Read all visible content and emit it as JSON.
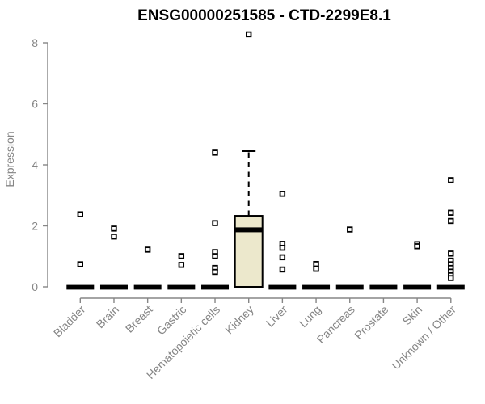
{
  "chart_data": {
    "type": "boxplot",
    "title": "ENSG00000251585 - CTD-2299E8.1",
    "ylabel": "Expression",
    "xlabel": "",
    "ylim": [
      0,
      8
    ],
    "yticks": [
      0,
      2,
      4,
      6,
      8
    ],
    "grid": false,
    "legend": null,
    "categories": [
      "Bladder",
      "Brain",
      "Breast",
      "Gastric",
      "Hematopoietic cells",
      "Kidney",
      "Liver",
      "Lung",
      "Pancreas",
      "Prostate",
      "Skin",
      "Unknown / Other"
    ],
    "boxes": [
      {
        "category": "Bladder",
        "q1": 0,
        "median": 0,
        "q3": 0,
        "whisker_low": 0,
        "whisker_high": 0,
        "outliers": [
          2.38,
          0.74
        ]
      },
      {
        "category": "Brain",
        "q1": 0,
        "median": 0,
        "q3": 0,
        "whisker_low": 0,
        "whisker_high": 0,
        "outliers": [
          1.91,
          1.65
        ]
      },
      {
        "category": "Breast",
        "q1": 0,
        "median": 0,
        "q3": 0,
        "whisker_low": 0,
        "whisker_high": 0,
        "outliers": [
          1.22
        ]
      },
      {
        "category": "Gastric",
        "q1": 0,
        "median": 0,
        "q3": 0,
        "whisker_low": 0,
        "whisker_high": 0,
        "outliers": [
          1.01,
          0.72
        ]
      },
      {
        "category": "Hematopoietic cells",
        "q1": 0,
        "median": 0,
        "q3": 0,
        "whisker_low": 0,
        "whisker_high": 0,
        "outliers": [
          4.4,
          2.09,
          1.14,
          1.01,
          0.62,
          0.49
        ]
      },
      {
        "category": "Kidney",
        "q1": 0,
        "median": 1.87,
        "q3": 2.33,
        "whisker_low": 0,
        "whisker_high": 4.45,
        "outliers": [
          8.28
        ]
      },
      {
        "category": "Liver",
        "q1": 0,
        "median": 0,
        "q3": 0,
        "whisker_low": 0,
        "whisker_high": 0,
        "outliers": [
          3.05,
          1.41,
          1.28,
          0.97,
          0.57
        ]
      },
      {
        "category": "Lung",
        "q1": 0,
        "median": 0,
        "q3": 0,
        "whisker_low": 0,
        "whisker_high": 0,
        "outliers": [
          0.75,
          0.59
        ]
      },
      {
        "category": "Pancreas",
        "q1": 0,
        "median": 0,
        "q3": 0,
        "whisker_low": 0,
        "whisker_high": 0,
        "outliers": [
          1.88
        ]
      },
      {
        "category": "Prostate",
        "q1": 0,
        "median": 0,
        "q3": 0,
        "whisker_low": 0,
        "whisker_high": 0,
        "outliers": []
      },
      {
        "category": "Skin",
        "q1": 0,
        "median": 0,
        "q3": 0,
        "whisker_low": 0,
        "whisker_high": 0,
        "outliers": [
          1.4,
          1.33
        ]
      },
      {
        "category": "Unknown / Other",
        "q1": 0,
        "median": 0,
        "q3": 0,
        "whisker_low": 0,
        "whisker_high": 0,
        "outliers": [
          3.5,
          2.43,
          2.16,
          1.09,
          0.86,
          0.74,
          0.62,
          0.5,
          0.38,
          0.29
        ]
      }
    ],
    "colors": {
      "box_fill": "#ECE8CC",
      "box_border": "#000000",
      "median": "#000000",
      "axis": "#868686",
      "tick_label": "#868686",
      "title": "#000000",
      "outlier_fill": "#FFFFFF",
      "outlier_border": "#000000",
      "background": "#FFFFFF"
    }
  }
}
